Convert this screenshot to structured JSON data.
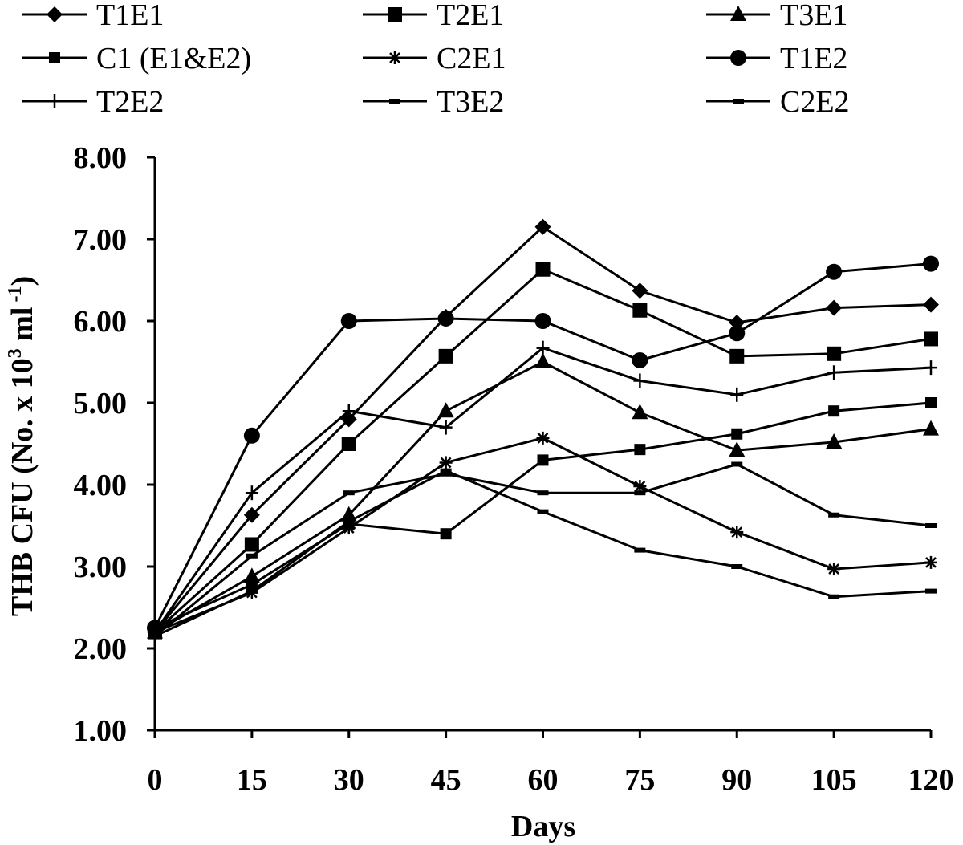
{
  "chart_data": {
    "type": "line",
    "title": "",
    "xlabel": "Days",
    "ylabel_main": "THB CFU (No. x 10",
    "ylabel_sup1": "3",
    "ylabel_mid": " ml",
    "ylabel_sup2": " -1",
    "ylabel_end": ")",
    "x": [
      0,
      15,
      30,
      45,
      60,
      75,
      90,
      105,
      120
    ],
    "x_tick_labels": [
      "0",
      "15",
      "30",
      "45",
      "60",
      "75",
      "90",
      "105",
      "120"
    ],
    "ylim": [
      1.0,
      8.0
    ],
    "y_ticks": [
      1.0,
      2.0,
      3.0,
      4.0,
      5.0,
      6.0,
      7.0,
      8.0
    ],
    "y_tick_labels": [
      "1.00",
      "2.00",
      "3.00",
      "4.00",
      "5.00",
      "6.00",
      "7.00",
      "8.00"
    ],
    "grid": false,
    "legend_position": "top",
    "series_color": "#000000",
    "series": [
      {
        "name": "T1E1",
        "marker": "diamond",
        "values": [
          2.2,
          3.63,
          4.8,
          6.05,
          7.15,
          6.37,
          5.98,
          6.16,
          6.2
        ]
      },
      {
        "name": "T2E1",
        "marker": "square",
        "values": [
          2.2,
          3.27,
          4.5,
          5.57,
          6.63,
          6.13,
          5.57,
          5.6,
          5.78
        ]
      },
      {
        "name": "T3E1",
        "marker": "triangle",
        "values": [
          2.2,
          2.88,
          3.63,
          4.9,
          5.5,
          4.88,
          4.42,
          4.52,
          4.68
        ]
      },
      {
        "name": "C1 (E1&E2)",
        "marker": "square-small",
        "values": [
          2.25,
          2.78,
          3.52,
          3.4,
          4.3,
          4.43,
          4.62,
          4.9,
          5.0
        ]
      },
      {
        "name": "C2E1",
        "marker": "star",
        "values": [
          2.2,
          2.68,
          3.47,
          4.27,
          4.57,
          3.98,
          3.42,
          2.97,
          3.05
        ]
      },
      {
        "name": "T1E2",
        "marker": "circle",
        "values": [
          2.25,
          4.6,
          6.0,
          6.03,
          6.0,
          5.52,
          5.85,
          6.6,
          6.7
        ]
      },
      {
        "name": "T2E2",
        "marker": "plus",
        "values": [
          2.2,
          3.9,
          4.9,
          4.7,
          5.67,
          5.27,
          5.1,
          5.37,
          5.43
        ]
      },
      {
        "name": "T3E2",
        "marker": "dash",
        "values": [
          2.15,
          3.13,
          3.9,
          4.13,
          3.9,
          3.9,
          4.25,
          3.63,
          3.5
        ]
      },
      {
        "name": "C2E2",
        "marker": "dash",
        "values": [
          2.15,
          2.7,
          3.55,
          4.17,
          3.67,
          3.2,
          3.0,
          2.63,
          2.7
        ]
      }
    ]
  }
}
